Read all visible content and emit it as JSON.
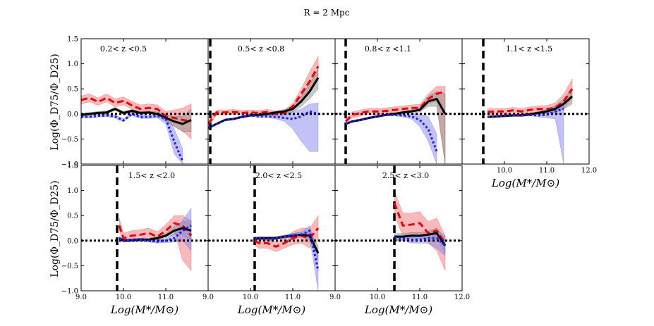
{
  "figure": {
    "title": "R = 2 Mpc",
    "ylabel": "Log(Φ_D75/Φ_D25)",
    "xlabel": "Log(M*/M⊙)",
    "xlim": [
      9.0,
      12.0
    ],
    "ylim": [
      -1.0,
      1.5
    ],
    "xticks": [
      9.0,
      10.0,
      11.0,
      12.0
    ],
    "xtick_labels": [
      "9.0",
      "10.0",
      "11.0",
      "12.0"
    ],
    "yticks": [
      -1.0,
      -0.5,
      0.0,
      0.5,
      1.0,
      1.5
    ],
    "ytick_labels": [
      "−1.0",
      "−0.5",
      "0.0",
      "0.5",
      "1.0",
      "1.5"
    ],
    "colors": {
      "red": "#e8000b",
      "blue": "#1f1fe8",
      "black": "#000000",
      "red_band": "#f08080",
      "blue_band": "#8f8fef",
      "black_band": "#999999"
    }
  },
  "chart_data": [
    {
      "type": "line",
      "panel": 0,
      "label": "0.2< z <0.5",
      "mass_limit": null,
      "x": [
        9.0,
        9.2,
        9.4,
        9.6,
        9.8,
        10.0,
        10.2,
        10.4,
        10.6,
        10.8,
        11.0,
        11.2,
        11.4,
        11.6
      ],
      "series": [
        {
          "name": "red-dashed",
          "values": [
            0.28,
            0.32,
            0.24,
            0.32,
            0.22,
            0.26,
            0.17,
            0.1,
            0.12,
            0.1,
            -0.05,
            -0.08,
            -0.12,
            -0.15
          ],
          "lower": [
            0.2,
            0.24,
            0.17,
            0.24,
            0.14,
            0.18,
            0.09,
            0.03,
            0.04,
            0.02,
            -0.15,
            -0.25,
            -0.35,
            -0.5
          ],
          "upper": [
            0.36,
            0.4,
            0.32,
            0.4,
            0.3,
            0.34,
            0.25,
            0.18,
            0.2,
            0.18,
            0.05,
            0.08,
            0.12,
            0.2
          ]
        },
        {
          "name": "black-solid",
          "values": [
            -0.02,
            0.0,
            0.02,
            0.03,
            0.1,
            0.02,
            0.06,
            0.02,
            0.03,
            0.0,
            -0.08,
            -0.15,
            -0.2,
            -0.12
          ],
          "lower": [
            -0.05,
            -0.03,
            -0.01,
            0.0,
            0.07,
            -0.01,
            0.03,
            -0.01,
            0.0,
            -0.04,
            -0.15,
            -0.25,
            -0.35,
            -0.35
          ],
          "upper": [
            0.01,
            0.03,
            0.05,
            0.06,
            0.13,
            0.05,
            0.09,
            0.05,
            0.06,
            0.04,
            -0.01,
            -0.05,
            -0.05,
            0.1
          ]
        },
        {
          "name": "blue-dotted",
          "values": [
            -0.06,
            -0.06,
            -0.04,
            -0.03,
            -0.05,
            -0.13,
            0.0,
            -0.06,
            -0.06,
            -0.04,
            -0.1,
            -0.55,
            -0.95,
            null
          ],
          "lower": [
            -0.08,
            -0.08,
            -0.06,
            -0.05,
            -0.08,
            -0.16,
            -0.03,
            -0.09,
            -0.09,
            -0.08,
            -0.2,
            -0.8,
            -1.0,
            null
          ],
          "upper": [
            -0.04,
            -0.04,
            -0.02,
            -0.01,
            -0.02,
            -0.1,
            0.03,
            -0.03,
            -0.03,
            0.0,
            0.0,
            -0.3,
            -0.7,
            null
          ]
        }
      ]
    },
    {
      "type": "line",
      "panel": 1,
      "label": "0.5< z <0.8",
      "mass_limit": 9.05,
      "x": [
        9.0,
        9.2,
        9.4,
        9.6,
        9.8,
        10.0,
        10.2,
        10.4,
        10.6,
        10.8,
        11.0,
        11.2,
        11.4,
        11.6
      ],
      "series": [
        {
          "name": "red-dashed",
          "values": [
            -0.2,
            0.03,
            0.03,
            0.04,
            0.02,
            0.03,
            0.02,
            0.04,
            0.0,
            0.02,
            0.15,
            0.4,
            0.65,
            0.95
          ],
          "lower": [
            -0.28,
            -0.02,
            -0.02,
            -0.01,
            -0.03,
            -0.02,
            -0.03,
            -0.01,
            -0.05,
            -0.03,
            0.08,
            0.3,
            0.5,
            0.75
          ],
          "upper": [
            -0.12,
            0.08,
            0.08,
            0.09,
            0.07,
            0.08,
            0.07,
            0.09,
            0.05,
            0.07,
            0.22,
            0.5,
            0.85,
            1.15
          ]
        },
        {
          "name": "black-solid",
          "values": [
            -0.28,
            -0.2,
            -0.12,
            -0.1,
            -0.06,
            -0.03,
            -0.02,
            0.0,
            0.03,
            0.05,
            0.1,
            0.25,
            0.45,
            0.72
          ],
          "lower": [
            -0.3,
            -0.22,
            -0.14,
            -0.12,
            -0.08,
            -0.05,
            -0.04,
            -0.02,
            0.0,
            0.01,
            0.04,
            0.15,
            0.3,
            0.5
          ],
          "upper": [
            -0.26,
            -0.18,
            -0.1,
            -0.08,
            -0.04,
            -0.01,
            0.0,
            0.02,
            0.06,
            0.09,
            0.16,
            0.35,
            0.6,
            0.9
          ]
        },
        {
          "name": "blue-dotted",
          "values": [
            -0.28,
            -0.2,
            -0.12,
            -0.1,
            -0.06,
            -0.03,
            -0.05,
            -0.05,
            -0.06,
            -0.08,
            -0.1,
            -0.05,
            0.05,
            0.0
          ],
          "lower": [
            -0.3,
            -0.22,
            -0.14,
            -0.12,
            -0.08,
            -0.05,
            -0.07,
            -0.07,
            -0.1,
            -0.15,
            -0.3,
            -0.55,
            -0.75,
            -0.75
          ],
          "upper": [
            -0.26,
            -0.18,
            -0.1,
            -0.08,
            -0.04,
            -0.01,
            -0.03,
            -0.03,
            -0.02,
            -0.01,
            0.05,
            0.1,
            0.2,
            0.22
          ]
        }
      ]
    },
    {
      "type": "line",
      "panel": 2,
      "label": "0.8< z <1.1",
      "mass_limit": 9.25,
      "x": [
        9.25,
        9.4,
        9.6,
        9.8,
        10.0,
        10.2,
        10.4,
        10.6,
        10.8,
        11.0,
        11.2,
        11.4,
        11.6
      ],
      "series": [
        {
          "name": "red-dashed",
          "values": [
            -0.15,
            -0.02,
            0.02,
            0.05,
            0.05,
            0.06,
            0.08,
            0.1,
            0.12,
            0.12,
            0.3,
            0.4,
            0.45
          ],
          "lower": [
            -0.2,
            -0.08,
            -0.04,
            -0.01,
            -0.01,
            0.0,
            0.02,
            0.04,
            0.06,
            0.05,
            0.2,
            0.25,
            -1.0
          ],
          "upper": [
            -0.1,
            0.04,
            0.08,
            0.11,
            0.11,
            0.12,
            0.14,
            0.16,
            0.18,
            0.19,
            0.4,
            0.55,
            0.55
          ]
        },
        {
          "name": "black-solid",
          "values": [
            -0.2,
            -0.15,
            -0.12,
            -0.08,
            -0.05,
            -0.02,
            0.0,
            0.03,
            0.05,
            0.08,
            0.25,
            0.3,
            0.0
          ],
          "lower": [
            -0.22,
            -0.17,
            -0.14,
            -0.1,
            -0.07,
            -0.04,
            -0.02,
            0.01,
            0.02,
            0.04,
            0.15,
            0.15,
            -1.0
          ],
          "upper": [
            -0.18,
            -0.13,
            -0.1,
            -0.06,
            -0.03,
            0.0,
            0.02,
            0.05,
            0.08,
            0.12,
            0.35,
            0.45,
            0.4
          ]
        },
        {
          "name": "blue-dotted",
          "values": [
            -0.2,
            -0.15,
            -0.12,
            -0.08,
            -0.05,
            -0.02,
            -0.02,
            -0.03,
            -0.05,
            -0.12,
            -0.3,
            -0.75,
            null
          ],
          "lower": [
            -0.22,
            -0.17,
            -0.14,
            -0.1,
            -0.07,
            -0.04,
            -0.04,
            -0.06,
            -0.1,
            -0.25,
            -0.55,
            -1.0,
            null
          ],
          "upper": [
            -0.18,
            -0.13,
            -0.1,
            -0.06,
            -0.03,
            0.0,
            0.0,
            0.0,
            0.0,
            0.0,
            -0.05,
            -0.4,
            null
          ]
        }
      ]
    },
    {
      "type": "line",
      "panel": 3,
      "label": "1.1< z <1.5",
      "mass_limit": 9.5,
      "x": [
        9.6,
        9.8,
        10.0,
        10.2,
        10.4,
        10.6,
        10.8,
        11.0,
        11.2,
        11.4,
        11.6
      ],
      "series": [
        {
          "name": "red-dashed",
          "values": [
            0.04,
            0.05,
            0.05,
            0.07,
            0.05,
            0.08,
            0.1,
            0.1,
            0.12,
            0.25,
            0.5
          ],
          "lower": [
            -0.02,
            -0.01,
            -0.01,
            0.01,
            -0.01,
            0.02,
            0.04,
            0.03,
            0.02,
            0.1,
            0.3
          ],
          "upper": [
            0.1,
            0.11,
            0.11,
            0.13,
            0.11,
            0.14,
            0.16,
            0.17,
            0.22,
            0.4,
            0.7
          ]
        },
        {
          "name": "black-solid",
          "values": [
            -0.06,
            -0.05,
            -0.04,
            -0.03,
            -0.03,
            -0.01,
            0.02,
            0.05,
            0.1,
            0.2,
            0.35
          ],
          "lower": [
            -0.08,
            -0.07,
            -0.06,
            -0.05,
            -0.05,
            -0.03,
            -0.01,
            0.01,
            0.04,
            0.1,
            0.2
          ],
          "upper": [
            -0.04,
            -0.03,
            -0.02,
            -0.01,
            -0.01,
            0.01,
            0.05,
            0.09,
            0.16,
            0.3,
            0.5
          ]
        },
        {
          "name": "blue-dotted",
          "values": [
            -0.06,
            -0.05,
            -0.04,
            -0.03,
            -0.03,
            -0.02,
            -0.03,
            -0.02,
            0.05,
            0.1,
            null
          ],
          "lower": [
            -0.08,
            -0.07,
            -0.06,
            -0.05,
            -0.05,
            -0.04,
            -0.06,
            -0.08,
            -0.1,
            -1.0,
            null
          ],
          "upper": [
            -0.04,
            -0.03,
            -0.02,
            -0.01,
            -0.01,
            0.0,
            0.0,
            0.04,
            0.15,
            0.25,
            null
          ]
        }
      ]
    },
    {
      "type": "line",
      "panel": 4,
      "label": "1.5< z <2.0",
      "mass_limit": 9.85,
      "x": [
        9.9,
        10.0,
        10.2,
        10.4,
        10.6,
        10.8,
        11.0,
        11.2,
        11.4,
        11.6
      ],
      "series": [
        {
          "name": "red-dashed",
          "values": [
            0.3,
            0.05,
            0.1,
            0.12,
            0.15,
            0.08,
            0.2,
            0.35,
            0.3,
            0.1
          ],
          "lower": [
            0.2,
            -0.02,
            0.02,
            0.04,
            0.07,
            0.0,
            0.08,
            0.2,
            -0.4,
            -0.6
          ],
          "upper": [
            0.45,
            0.15,
            0.2,
            0.22,
            0.25,
            0.18,
            0.32,
            0.5,
            0.5,
            0.4
          ]
        },
        {
          "name": "black-solid",
          "values": [
            0.05,
            0.0,
            0.01,
            0.02,
            0.02,
            0.05,
            0.1,
            0.2,
            0.25,
            0.2
          ],
          "lower": [
            0.02,
            -0.03,
            -0.02,
            -0.01,
            -0.01,
            0.02,
            0.06,
            0.12,
            0.12,
            0.0
          ],
          "upper": [
            0.08,
            0.03,
            0.04,
            0.05,
            0.05,
            0.08,
            0.14,
            0.28,
            0.38,
            0.4
          ]
        },
        {
          "name": "blue-dotted",
          "values": [
            0.05,
            0.0,
            0.01,
            0.02,
            0.0,
            -0.02,
            0.0,
            0.05,
            0.2,
            0.3
          ],
          "lower": [
            0.02,
            -0.03,
            -0.02,
            -0.01,
            -0.03,
            -0.05,
            -0.04,
            -0.03,
            0.0,
            -0.2
          ],
          "upper": [
            0.08,
            0.03,
            0.04,
            0.05,
            0.03,
            0.01,
            0.04,
            0.13,
            0.4,
            0.65
          ]
        }
      ]
    },
    {
      "type": "line",
      "panel": 5,
      "label": "2.0< z <2.5",
      "mass_limit": 10.1,
      "x": [
        10.1,
        10.2,
        10.4,
        10.6,
        10.8,
        11.0,
        11.2,
        11.4,
        11.6
      ],
      "series": [
        {
          "name": "red-dashed",
          "values": [
            0.0,
            -0.05,
            -0.05,
            -0.12,
            -0.05,
            0.05,
            0.1,
            0.05,
            0.25
          ],
          "lower": [
            -0.1,
            -0.15,
            -0.15,
            -0.22,
            -0.15,
            -0.08,
            -0.05,
            -0.15,
            0.0
          ],
          "upper": [
            0.1,
            0.05,
            0.05,
            -0.02,
            0.05,
            0.18,
            0.25,
            0.25,
            0.5
          ]
        },
        {
          "name": "black-solid",
          "values": [
            0.03,
            0.05,
            0.05,
            0.05,
            0.08,
            0.1,
            0.12,
            0.1,
            -0.25
          ],
          "lower": [
            0.0,
            0.02,
            0.02,
            0.02,
            0.05,
            0.06,
            0.07,
            0.02,
            -0.4
          ],
          "upper": [
            0.06,
            0.08,
            0.08,
            0.08,
            0.11,
            0.14,
            0.17,
            0.18,
            -0.1
          ]
        },
        {
          "name": "blue-dotted",
          "values": [
            0.03,
            0.05,
            0.03,
            0.05,
            0.08,
            0.1,
            0.12,
            0.2,
            -0.6
          ],
          "lower": [
            0.0,
            0.02,
            0.0,
            0.02,
            0.05,
            0.06,
            0.07,
            0.05,
            -1.0
          ],
          "upper": [
            0.06,
            0.08,
            0.06,
            0.08,
            0.11,
            0.14,
            0.17,
            0.3,
            -0.3
          ]
        }
      ]
    },
    {
      "type": "line",
      "panel": 6,
      "label": "2.5< z <3.0",
      "mass_limit": 10.4,
      "x": [
        10.4,
        10.6,
        10.8,
        11.0,
        11.2,
        11.4,
        11.6
      ],
      "series": [
        {
          "name": "red-dashed",
          "values": [
            0.75,
            0.3,
            0.32,
            0.35,
            0.15,
            0.2,
            -0.05
          ],
          "lower": [
            0.5,
            0.1,
            0.12,
            0.15,
            -0.05,
            -0.2,
            -0.6
          ],
          "upper": [
            1.0,
            0.55,
            0.55,
            0.58,
            0.38,
            0.45,
            0.1
          ]
        },
        {
          "name": "black-solid",
          "values": [
            0.08,
            0.08,
            0.1,
            0.1,
            0.12,
            0.15,
            -0.1
          ],
          "lower": [
            0.02,
            0.02,
            0.04,
            0.04,
            0.05,
            0.05,
            -0.25
          ],
          "upper": [
            0.14,
            0.14,
            0.16,
            0.16,
            0.19,
            0.25,
            0.05
          ]
        },
        {
          "name": "blue-dotted",
          "values": [
            0.05,
            0.05,
            0.02,
            0.02,
            0.05,
            0.05,
            -0.1
          ],
          "lower": [
            0.0,
            0.0,
            -0.05,
            -0.05,
            -0.05,
            -0.15,
            -0.3
          ],
          "upper": [
            0.1,
            0.1,
            0.09,
            0.09,
            0.15,
            0.2,
            0.1
          ]
        }
      ]
    }
  ]
}
